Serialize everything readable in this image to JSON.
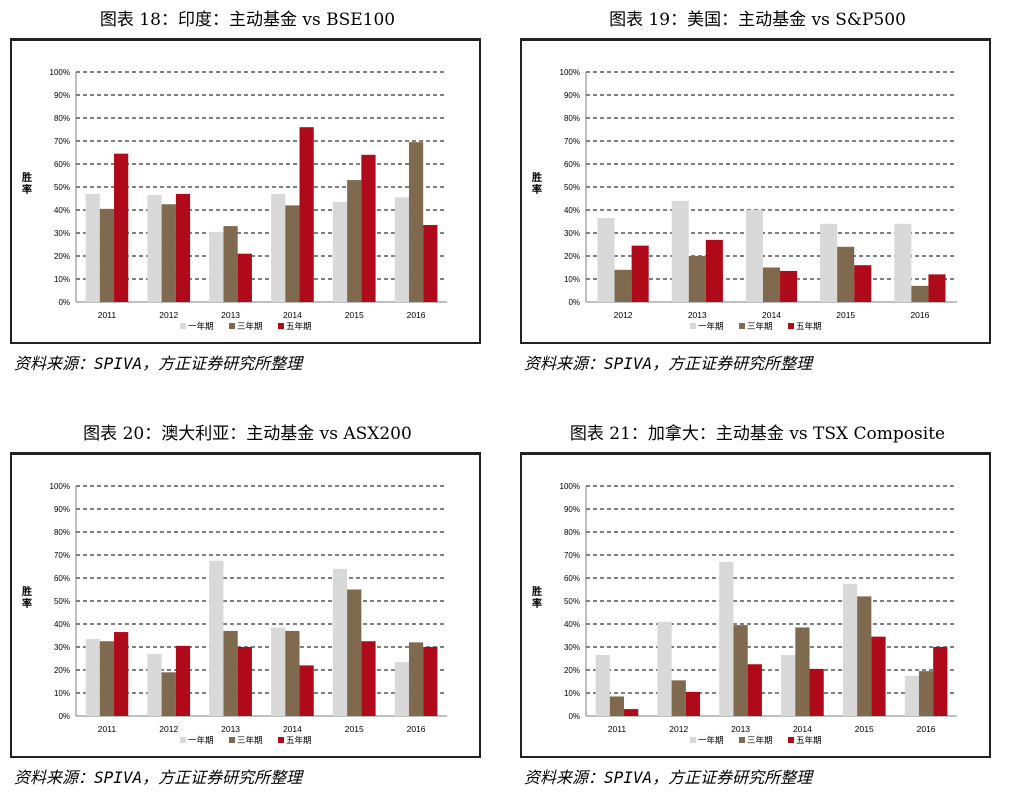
{
  "colors": {
    "one_year": "#d9d9d9",
    "three_year": "#7f6a4f",
    "five_year": "#ae0a1a"
  },
  "legend": [
    "一年期",
    "三年期",
    "五年期"
  ],
  "ylabel": "胜率",
  "yticks": [
    "0%",
    "10%",
    "20%",
    "30%",
    "40%",
    "50%",
    "60%",
    "70%",
    "80%",
    "90%",
    "100%"
  ],
  "source": "资料来源：SPIVA，方正证券研究所整理",
  "panels": [
    {
      "title": "图表 18：印度：主动基金  vs BSE100"
    },
    {
      "title": "图表 19：美国：主动基金 vs S&P500"
    },
    {
      "title": "图表 20：澳大利亚：主动基金  vs ASX200"
    },
    {
      "title": "图表 21：加拿大：主动基金  vs TSX Composite"
    }
  ],
  "chart_data": [
    {
      "type": "bar",
      "title": "图表 18：印度：主动基金  vs BSE100",
      "categories": [
        "2011",
        "2012",
        "2013",
        "2014",
        "2015",
        "2016"
      ],
      "series": [
        {
          "name": "一年期",
          "values": [
            47,
            46.5,
            30.5,
            47,
            43.5,
            45.5
          ]
        },
        {
          "name": "三年期",
          "values": [
            40.5,
            42.5,
            33,
            42,
            53,
            69.5
          ]
        },
        {
          "name": "五年期",
          "values": [
            64.5,
            47,
            21,
            76,
            64,
            33.5
          ]
        }
      ],
      "ylabel": "胜率",
      "ylim": [
        0,
        100
      ],
      "grid": true,
      "legend": "bottom"
    },
    {
      "type": "bar",
      "title": "图表 19：美国：主动基金 vs S&P500",
      "categories": [
        "2012",
        "2013",
        "2014",
        "2015",
        "2016"
      ],
      "series": [
        {
          "name": "一年期",
          "values": [
            36.5,
            44,
            40,
            34,
            34
          ]
        },
        {
          "name": "三年期",
          "values": [
            14,
            20,
            15,
            24,
            7
          ]
        },
        {
          "name": "五年期",
          "values": [
            24.5,
            27,
            13.5,
            16,
            12
          ]
        }
      ],
      "ylabel": "胜率",
      "ylim": [
        0,
        100
      ],
      "grid": true,
      "legend": "bottom"
    },
    {
      "type": "bar",
      "title": "图表 20：澳大利亚：主动基金  vs ASX200",
      "categories": [
        "2011",
        "2012",
        "2013",
        "2014",
        "2015",
        "2016"
      ],
      "series": [
        {
          "name": "一年期",
          "values": [
            33.5,
            27,
            67.5,
            38.5,
            64,
            23.5
          ]
        },
        {
          "name": "三年期",
          "values": [
            32.5,
            19,
            37,
            37,
            55,
            32
          ]
        },
        {
          "name": "五年期",
          "values": [
            36.5,
            30.5,
            30,
            22,
            32.5,
            30
          ]
        }
      ],
      "ylabel": "胜率",
      "ylim": [
        0,
        100
      ],
      "grid": true,
      "legend": "bottom"
    },
    {
      "type": "bar",
      "title": "图表 21：加拿大：主动基金  vs TSX Composite",
      "categories": [
        "2011",
        "2012",
        "2013",
        "2014",
        "2015",
        "2016"
      ],
      "series": [
        {
          "name": "一年期",
          "values": [
            26.5,
            41,
            67,
            26.5,
            57.5,
            17.5
          ]
        },
        {
          "name": "三年期",
          "values": [
            8.5,
            15.5,
            39.5,
            38.5,
            52,
            19.5
          ]
        },
        {
          "name": "五年期",
          "values": [
            3,
            10.5,
            22.5,
            20.5,
            34.5,
            30
          ]
        }
      ],
      "ylabel": "胜率",
      "ylim": [
        0,
        100
      ],
      "grid": true,
      "legend": "bottom"
    }
  ]
}
